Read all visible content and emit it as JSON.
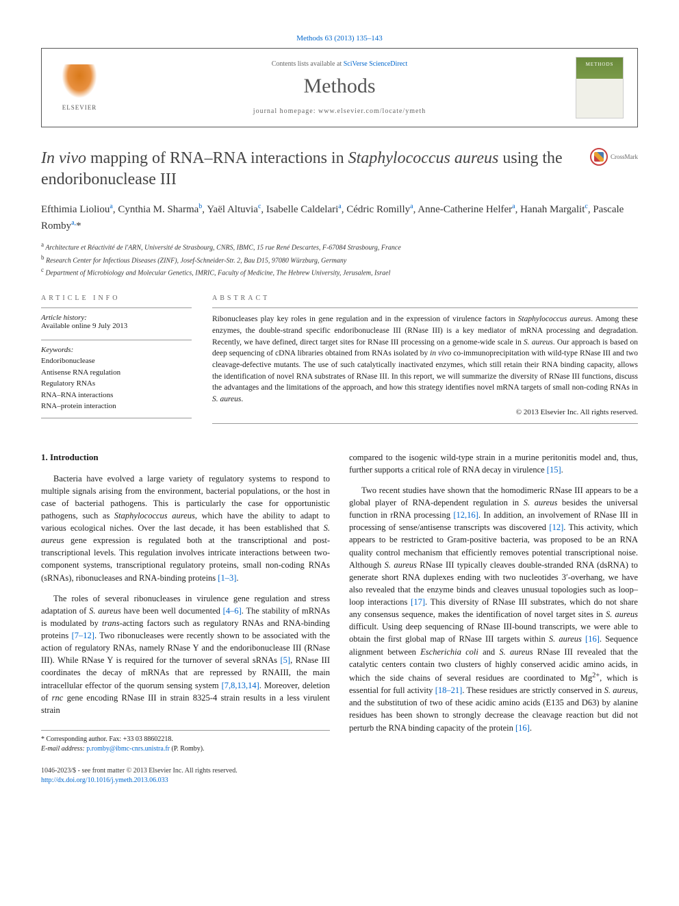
{
  "header": {
    "citation": "Methods 63 (2013) 135–143",
    "contents_prefix": "Contents lists available at ",
    "contents_link": "SciVerse ScienceDirect",
    "journal_name": "Methods",
    "homepage_prefix": "journal homepage: ",
    "homepage_url": "www.elsevier.com/locate/ymeth",
    "publisher": "ELSEVIER"
  },
  "crossmark": {
    "label": "CrossMark"
  },
  "title": {
    "pre_italic1": "In vivo",
    "mid1": " mapping of RNA–RNA interactions in ",
    "italic2": "Staphylococcus aureus",
    "post": " using the endoribonuclease III"
  },
  "authors_html": "Efthimia Lioliou<sup>a</sup>, Cynthia M. Sharma<sup>b</sup>, Yaël Altuvia<sup>c</sup>, Isabelle Caldelari<sup>a</sup>, Cédric Romilly<sup>a</sup>, Anne-Catherine Helfer<sup>a</sup>, Hanah Margalit<sup>c</sup>, Pascale Romby<sup>a,</sup><span class='star'>*</span>",
  "affiliations": [
    {
      "sup": "a",
      "text": "Architecture et Réactivité de l'ARN, Université de Strasbourg, CNRS, IBMC, 15 rue René Descartes, F-67084 Strasbourg, France"
    },
    {
      "sup": "b",
      "text": "Research Center for Infectious Diseases (ZINF), Josef-Schneider-Str. 2, Bau D15, 97080 Würzburg, Germany"
    },
    {
      "sup": "c",
      "text": "Department of Microbiology and Molecular Genetics, IMRIC, Faculty of Medicine, The Hebrew University, Jerusalem, Israel"
    }
  ],
  "article_info": {
    "header": "ARTICLE INFO",
    "history_label": "Article history:",
    "history_value": "Available online 9 July 2013",
    "keywords_label": "Keywords:",
    "keywords": [
      "Endoribonuclease",
      "Antisense RNA regulation",
      "Regulatory RNAs",
      "RNA–RNA interactions",
      "RNA–protein interaction"
    ]
  },
  "abstract": {
    "header": "ABSTRACT",
    "text": "Ribonucleases play key roles in gene regulation and in the expression of virulence factors in <span class='italic'>Staphylococcus aureus</span>. Among these enzymes, the double-strand specific endoribonuclease III (RNase III) is a key mediator of mRNA processing and degradation. Recently, we have defined, direct target sites for RNase III processing on a genome-wide scale in <span class='italic'>S. aureus</span>. Our approach is based on deep sequencing of cDNA libraries obtained from RNAs isolated by <span class='italic'>in vivo</span> co-immunoprecipitation with wild-type RNase III and two cleavage-defective mutants. The use of such catalytically inactivated enzymes, which still retain their RNA binding capacity, allows the identification of novel RNA substrates of RNase III. In this report, we will summarize the diversity of RNase III functions, discuss the advantages and the limitations of the approach, and how this strategy identifies novel mRNA targets of small non-coding RNAs in <span class='italic'>S. aureus</span>.",
    "copyright": "© 2013 Elsevier Inc. All rights reserved."
  },
  "body": {
    "section_heading": "1. Introduction",
    "left_paras": [
      "Bacteria have evolved a large variety of regulatory systems to respond to multiple signals arising from the environment, bacterial populations, or the host in case of bacterial pathogens. This is particularly the case for opportunistic pathogens, such as <span class='italic'>Staphylococcus aureus</span>, which have the ability to adapt to various ecological niches. Over the last decade, it has been established that <span class='italic'>S. aureus</span> gene expression is regulated both at the transcriptional and post-transcriptional levels. This regulation involves intricate interactions between two-component systems, transcriptional regulatory proteins, small non-coding RNAs (sRNAs), ribonucleases and RNA-binding proteins <span class='ref'>[1–3]</span>.",
      "The roles of several ribonucleases in virulence gene regulation and stress adaptation of <span class='italic'>S. aureus</span> have been well documented <span class='ref'>[4–6]</span>. The stability of mRNAs is modulated by <span class='italic'>trans</span>-acting factors such as regulatory RNAs and RNA-binding proteins <span class='ref'>[7–12]</span>. Two ribonucleases were recently shown to be associated with the action of regulatory RNAs, namely RNase Y and the endoribonuclease III (RNase III). While RNase Y is required for the turnover of several sRNAs <span class='ref'>[5]</span>, RNase III coordinates the decay of mRNAs that are repressed by RNAIII, the main intracellular effector of the quorum sensing system <span class='ref'>[7,8,13,14]</span>. Moreover, deletion of <span class='italic'>rnc</span> gene encoding RNase III in strain 8325-4 strain results in a less virulent strain"
    ],
    "right_paras": [
      "compared to the isogenic wild-type strain in a murine peritonitis model and, thus, further supports a critical role of RNA decay in virulence <span class='ref'>[15]</span>.",
      "Two recent studies have shown that the homodimeric RNase III appears to be a global player of RNA-dependent regulation in <span class='italic'>S. aureus</span> besides the universal function in rRNA processing <span class='ref'>[12,16]</span>. In addition, an involvement of RNase III in processing of sense/antisense transcripts was discovered <span class='ref'>[12]</span>. This activity, which appears to be restricted to Gram-positive bacteria, was proposed to be an RNA quality control mechanism that efficiently removes potential transcriptional noise. Although <span class='italic'>S. aureus</span> RNase III typically cleaves double-stranded RNA (dsRNA) to generate short RNA duplexes ending with two nucleotides 3′-overhang, we have also revealed that the enzyme binds and cleaves unusual topologies such as loop–loop interactions <span class='ref'>[17]</span>. This diversity of RNase III substrates, which do not share any consensus sequence, makes the identification of novel target sites in <span class='italic'>S. aureus</span> difficult. Using deep sequencing of RNase III-bound transcripts, we were able to obtain the first global map of RNase III targets within <span class='italic'>S. aureus</span> <span class='ref'>[16]</span>. Sequence alignment between <span class='italic'>Escherichia coli</span> and <span class='italic'>S. aureus</span> RNase III revealed that the catalytic centers contain two clusters of highly conserved acidic amino acids, in which the side chains of several residues are coordinated to Mg<sup>2+</sup>, which is essential for full activity <span class='ref'>[18–21]</span>. These residues are strictly conserved in <span class='italic'>S. aureus</span>, and the substitution of two of these acidic amino acids (E135 and D63) by alanine residues has been shown to strongly decrease the cleavage reaction but did not perturb the RNA binding capacity of the protein <span class='ref'>[16]</span>."
    ]
  },
  "footnote": {
    "star": "*",
    "corresponding": " Corresponding author. Fax: +33 03 88602218.",
    "email_label": "E-mail address: ",
    "email": "p.romby@ibmc-cnrs.unistra.fr",
    "email_person": " (P. Romby)."
  },
  "footer": {
    "issn": "1046-2023/$ - see front matter © 2013 Elsevier Inc. All rights reserved.",
    "doi": "http://dx.doi.org/10.1016/j.ymeth.2013.06.033"
  }
}
